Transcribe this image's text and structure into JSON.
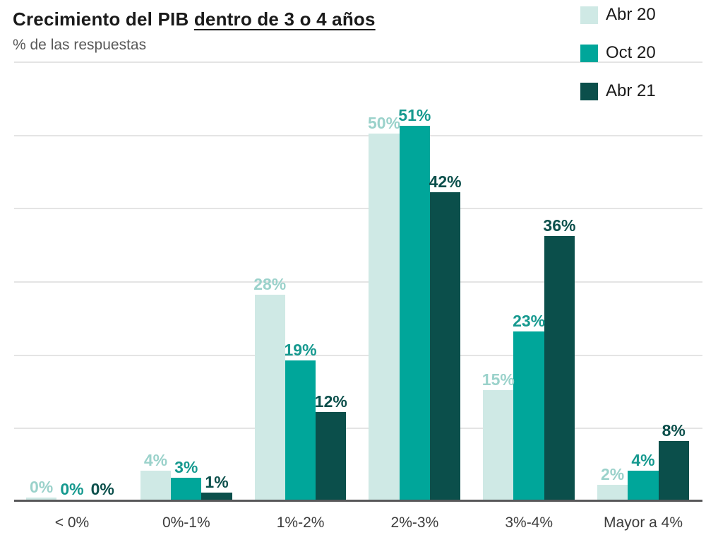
{
  "header": {
    "title_prefix": "Crecimiento del PIB ",
    "title_underlined": "dentro de 3 o 4 años",
    "subtitle": "% de las respuestas"
  },
  "chart_data": {
    "type": "bar",
    "title": "Crecimiento del PIB dentro de 3 o 4 años",
    "subtitle": "% de las respuestas",
    "xlabel": "",
    "ylabel": "% de las respuestas",
    "categories": [
      "< 0%",
      "0%-1%",
      "1%-2%",
      "2%-3%",
      "3%-4%",
      "Mayor a 4%"
    ],
    "series": [
      {
        "name": "Abr 20",
        "color": "#cfe9e5",
        "label_color": "#9bd2cb",
        "values": [
          0,
          4,
          28,
          50,
          15,
          2
        ]
      },
      {
        "name": "Oct 20",
        "color": "#00a69a",
        "label_color": "#16998f",
        "values": [
          0,
          3,
          19,
          51,
          23,
          4
        ]
      },
      {
        "name": "Abr 21",
        "color": "#0b4f4b",
        "label_color": "#0b4f4b",
        "values": [
          0,
          1,
          12,
          42,
          36,
          8
        ]
      }
    ],
    "value_suffix": "%",
    "ylim": [
      0,
      60
    ],
    "gridline_interval": 10,
    "grid": true,
    "legend_position": "top-right",
    "data_labels": true
  },
  "style": {
    "gridline_color": "#e4e4e4",
    "axis_line_color": "#58585a",
    "category_label_color": "#3d3d3d",
    "title_color": "#1a1a1a",
    "subtitle_color": "#595959",
    "background": "#ffffff"
  }
}
